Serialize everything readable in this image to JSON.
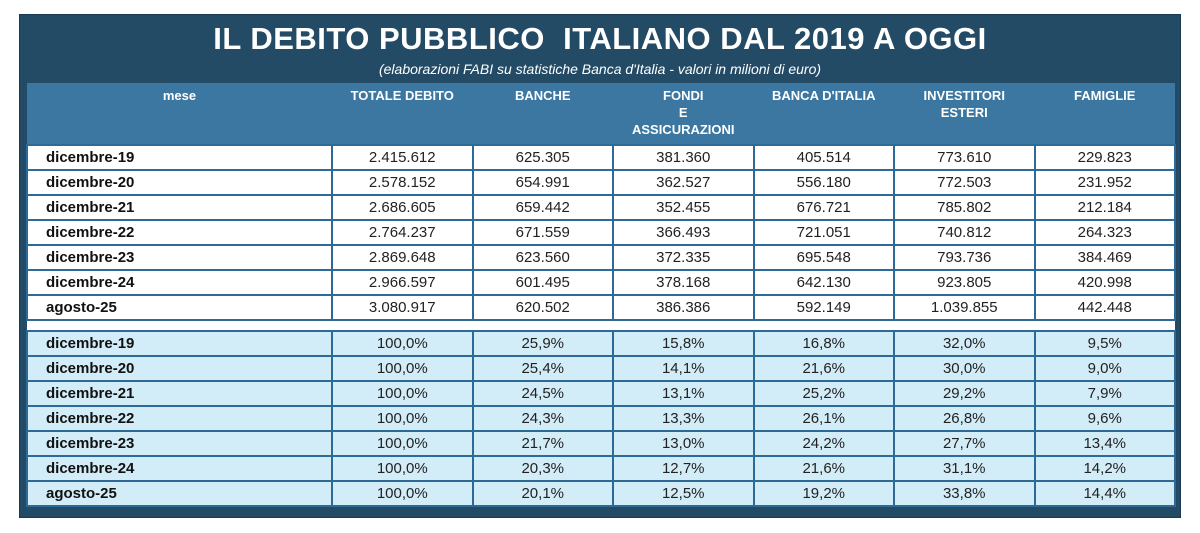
{
  "title": "IL DEBITO PUBBLICO  ITALIANO DAL 2019 A OGGI",
  "subtitle": "(elaborazioni FABI su statistiche Banca d'Italia - valori in milioni di euro)",
  "colors": {
    "title_band": "#234b66",
    "header_band": "#3b77a0",
    "percent_rows": "#d2ecf8",
    "grid": "#2d6a98"
  },
  "columns": [
    "mese",
    "TOTALE DEBITO",
    "BANCHE",
    "FONDI\nE\nASSICURAZIONI",
    "BANCA D'ITALIA",
    "INVESTITORI\nESTERI",
    "FAMIGLIE"
  ],
  "values_rows": [
    [
      "dicembre-19",
      "2.415.612",
      "625.305",
      "381.360",
      "405.514",
      "773.610",
      "229.823"
    ],
    [
      "dicembre-20",
      "2.578.152",
      "654.991",
      "362.527",
      "556.180",
      "772.503",
      "231.952"
    ],
    [
      "dicembre-21",
      "2.686.605",
      "659.442",
      "352.455",
      "676.721",
      "785.802",
      "212.184"
    ],
    [
      "dicembre-22",
      "2.764.237",
      "671.559",
      "366.493",
      "721.051",
      "740.812",
      "264.323"
    ],
    [
      "dicembre-23",
      "2.869.648",
      "623.560",
      "372.335",
      "695.548",
      "793.736",
      "384.469"
    ],
    [
      "dicembre-24",
      "2.966.597",
      "601.495",
      "378.168",
      "642.130",
      "923.805",
      "420.998"
    ],
    [
      "agosto-25",
      "3.080.917",
      "620.502",
      "386.386",
      "592.149",
      "1.039.855",
      "442.448"
    ]
  ],
  "percent_rows": [
    [
      "dicembre-19",
      "100,0%",
      "25,9%",
      "15,8%",
      "16,8%",
      "32,0%",
      "9,5%"
    ],
    [
      "dicembre-20",
      "100,0%",
      "25,4%",
      "14,1%",
      "21,6%",
      "30,0%",
      "9,0%"
    ],
    [
      "dicembre-21",
      "100,0%",
      "24,5%",
      "13,1%",
      "25,2%",
      "29,2%",
      "7,9%"
    ],
    [
      "dicembre-22",
      "100,0%",
      "24,3%",
      "13,3%",
      "26,1%",
      "26,8%",
      "9,6%"
    ],
    [
      "dicembre-23",
      "100,0%",
      "21,7%",
      "13,0%",
      "24,2%",
      "27,7%",
      "13,4%"
    ],
    [
      "dicembre-24",
      "100,0%",
      "20,3%",
      "12,7%",
      "21,6%",
      "31,1%",
      "14,2%"
    ],
    [
      "agosto-25",
      "100,0%",
      "20,1%",
      "12,5%",
      "19,2%",
      "33,8%",
      "14,4%"
    ]
  ]
}
